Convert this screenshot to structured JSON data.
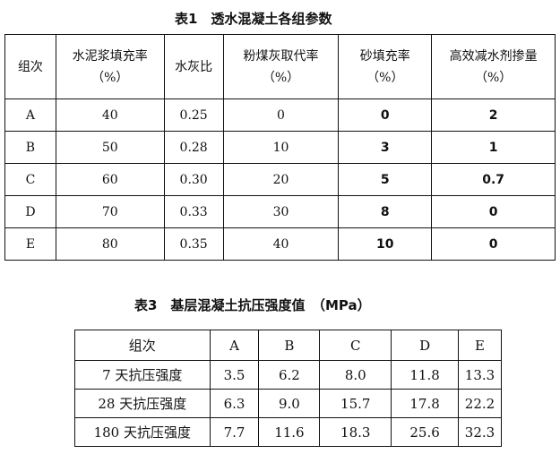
{
  "table1": {
    "title": "表1　透水混凝土各组参数",
    "headers": [
      [
        "组次",
        ""
      ],
      [
        "水泥浆填充率",
        "（%）"
      ],
      [
        "水灰比",
        ""
      ],
      [
        "粉煤灰取代率",
        "（%）"
      ],
      [
        "砂填充率",
        "（%）"
      ],
      [
        "高效减水剂掺量",
        "（%）"
      ]
    ],
    "rows": [
      [
        "A",
        "40",
        "0.25",
        "0",
        "0",
        "2"
      ],
      [
        "B",
        "50",
        "0.28",
        "10",
        "3",
        "1"
      ],
      [
        "C",
        "60",
        "0.30",
        "20",
        "5",
        "0.7"
      ],
      [
        "D",
        "70",
        "0.33",
        "30",
        "8",
        "0"
      ],
      [
        "E",
        "80",
        "0.35",
        "40",
        "10",
        "0"
      ]
    ]
  },
  "table3": {
    "title": "表3　基层混凝土抗压强度值　（MPa）",
    "headers": [
      "组次",
      "A",
      "B",
      "C",
      "D",
      "E"
    ],
    "rows": [
      [
        "7 天抗压强度",
        "3.5",
        "6.2",
        "8.0",
        "11.8",
        "13.3"
      ],
      [
        "28 天抗压强度",
        "6.3",
        "9.0",
        "15.7",
        "17.8",
        "22.2"
      ],
      [
        "180 天抗压强度",
        "7.7",
        "11.6",
        "18.3",
        "25.6",
        "32.3"
      ]
    ]
  }
}
